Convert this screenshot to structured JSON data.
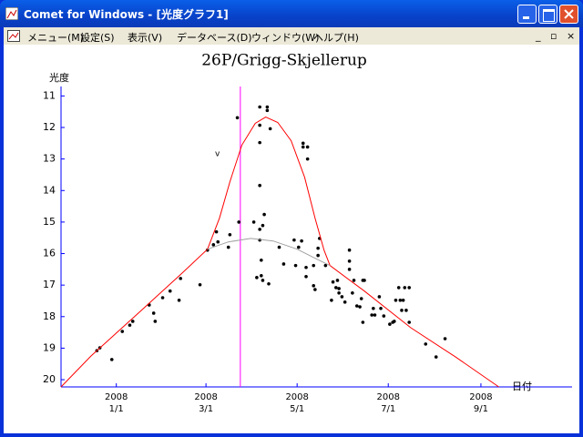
{
  "window": {
    "title": "Comet for Windows - [光度グラフ1]"
  },
  "menu": [
    "メニュー(M)",
    "設定(S)",
    "表示(V)",
    "データベース(D)",
    "ウィンドウ(W)",
    "ヘルプ(H)"
  ],
  "chart_data": {
    "type": "scatter",
    "title": "26P/Grigg-Skjellerup",
    "y_label": "光度",
    "x_label": "日付",
    "annotation": "v",
    "xlim": [
      "2007-11-25",
      "2008-11-01"
    ],
    "xticks": [
      {
        "value": "2008-01-01",
        "label": [
          "2008",
          "1/1"
        ]
      },
      {
        "value": "2008-03-01",
        "label": [
          "2008",
          "3/1"
        ]
      },
      {
        "value": "2008-05-01",
        "label": [
          "2008",
          "5/1"
        ]
      },
      {
        "value": "2008-07-01",
        "label": [
          "2008",
          "7/1"
        ]
      },
      {
        "value": "2008-09-01",
        "label": [
          "2008",
          "9/1"
        ]
      }
    ],
    "ylim": [
      20.23,
      10.7
    ],
    "yticks": [
      11,
      12,
      13,
      14,
      15,
      16,
      17,
      18,
      19,
      20
    ],
    "axis_color": "#0000ff",
    "vline": {
      "x": "2008-03-24",
      "color": "#ff00ff"
    },
    "series": [
      {
        "type": "scatter",
        "color": "#000000",
        "x": [
          "2007-12-19",
          "2007-12-21",
          "2007-12-29",
          "2008-01-05",
          "2008-01-10",
          "2008-01-12",
          "2008-01-23",
          "2008-01-26",
          "2008-01-27",
          "2008-02-01",
          "2008-02-06",
          "2008-02-12",
          "2008-02-13",
          "2008-02-26",
          "2008-03-02",
          "2008-03-06",
          "2008-03-08",
          "2008-03-09",
          "2008-03-16",
          "2008-03-17",
          "2008-03-22",
          "2008-03-23",
          "2008-04-02",
          "2008-04-04",
          "2008-04-06",
          "2008-04-06",
          "2008-04-06",
          "2008-04-06",
          "2008-04-06",
          "2008-04-06",
          "2008-04-07",
          "2008-04-07",
          "2008-04-08",
          "2008-04-08",
          "2008-04-09",
          "2008-04-11",
          "2008-04-11",
          "2008-04-13",
          "2008-04-12",
          "2008-04-19",
          "2008-04-22",
          "2008-04-29",
          "2008-04-30",
          "2008-05-02",
          "2008-05-04",
          "2008-05-05",
          "2008-05-05",
          "2008-05-07",
          "2008-05-07",
          "2008-05-08",
          "2008-05-08",
          "2008-05-12",
          "2008-05-12",
          "2008-05-13",
          "2008-05-15",
          "2008-05-15",
          "2008-05-16",
          "2008-05-20",
          "2008-05-24",
          "2008-05-25",
          "2008-05-27",
          "2008-05-28",
          "2008-05-29",
          "2008-05-29",
          "2008-05-31",
          "2008-06-02",
          "2008-06-05",
          "2008-06-05",
          "2008-06-05",
          "2008-06-07",
          "2008-06-08",
          "2008-06-10",
          "2008-06-12",
          "2008-06-13",
          "2008-06-14",
          "2008-06-15",
          "2008-06-14",
          "2008-06-20",
          "2008-06-21",
          "2008-06-22",
          "2008-06-25",
          "2008-06-26",
          "2008-06-28",
          "2008-07-02",
          "2008-07-04",
          "2008-07-05",
          "2008-07-06",
          "2008-07-08",
          "2008-07-09",
          "2008-07-10",
          "2008-07-11",
          "2008-07-12",
          "2008-07-13",
          "2008-07-15",
          "2008-07-15",
          "2008-07-26",
          "2008-08-02",
          "2008-08-08"
        ],
        "values": [
          19.08,
          18.99,
          19.36,
          18.47,
          18.27,
          18.15,
          17.63,
          17.89,
          18.15,
          17.4,
          17.19,
          17.48,
          16.79,
          16.99,
          15.89,
          15.72,
          15.31,
          15.63,
          15.8,
          15.4,
          11.69,
          15.0,
          15.0,
          16.76,
          11.35,
          11.93,
          12.48,
          13.84,
          15.23,
          15.57,
          16.21,
          16.7,
          16.85,
          15.11,
          14.76,
          11.35,
          11.46,
          12.04,
          16.96,
          15.8,
          16.33,
          15.57,
          16.38,
          15.8,
          15.6,
          12.5,
          12.62,
          16.44,
          16.73,
          13.0,
          12.62,
          16.38,
          17.02,
          17.14,
          16.06,
          15.83,
          15.52,
          16.38,
          17.48,
          16.9,
          17.08,
          16.85,
          17.25,
          17.11,
          17.37,
          17.54,
          16.24,
          15.89,
          16.5,
          17.25,
          16.85,
          17.66,
          17.69,
          17.43,
          16.85,
          16.85,
          18.18,
          17.95,
          17.74,
          17.95,
          17.37,
          17.74,
          17.98,
          18.24,
          18.18,
          18.15,
          17.48,
          17.08,
          17.48,
          17.8,
          17.48,
          17.08,
          17.8,
          18.18,
          17.08,
          18.87,
          19.28,
          18.7
        ]
      },
      {
        "type": "line",
        "color": "#ff0000",
        "x": [
          "2007-11-25",
          "2007-12-15",
          "2008-01-15",
          "2008-02-14",
          "2008-03-02",
          "2008-03-10",
          "2008-03-17",
          "2008-03-25",
          "2008-04-03",
          "2008-04-10",
          "2008-04-18",
          "2008-04-27",
          "2008-05-06",
          "2008-05-13",
          "2008-05-19",
          "2008-05-23",
          "2008-06-15",
          "2008-07-16",
          "2008-08-15",
          "2008-09-13"
        ],
        "values": [
          20.23,
          19.25,
          17.92,
          16.62,
          15.86,
          14.88,
          13.72,
          12.56,
          11.87,
          11.67,
          11.84,
          12.42,
          13.58,
          14.88,
          15.89,
          16.38,
          17.19,
          18.35,
          19.28,
          20.23
        ]
      },
      {
        "type": "line",
        "color": "#a0a0a0",
        "x": [
          "2008-03-02",
          "2008-03-16",
          "2008-03-31",
          "2008-04-15",
          "2008-05-01",
          "2008-05-13",
          "2008-05-23"
        ],
        "values": [
          15.86,
          15.63,
          15.52,
          15.6,
          15.86,
          16.15,
          16.38
        ]
      }
    ]
  }
}
